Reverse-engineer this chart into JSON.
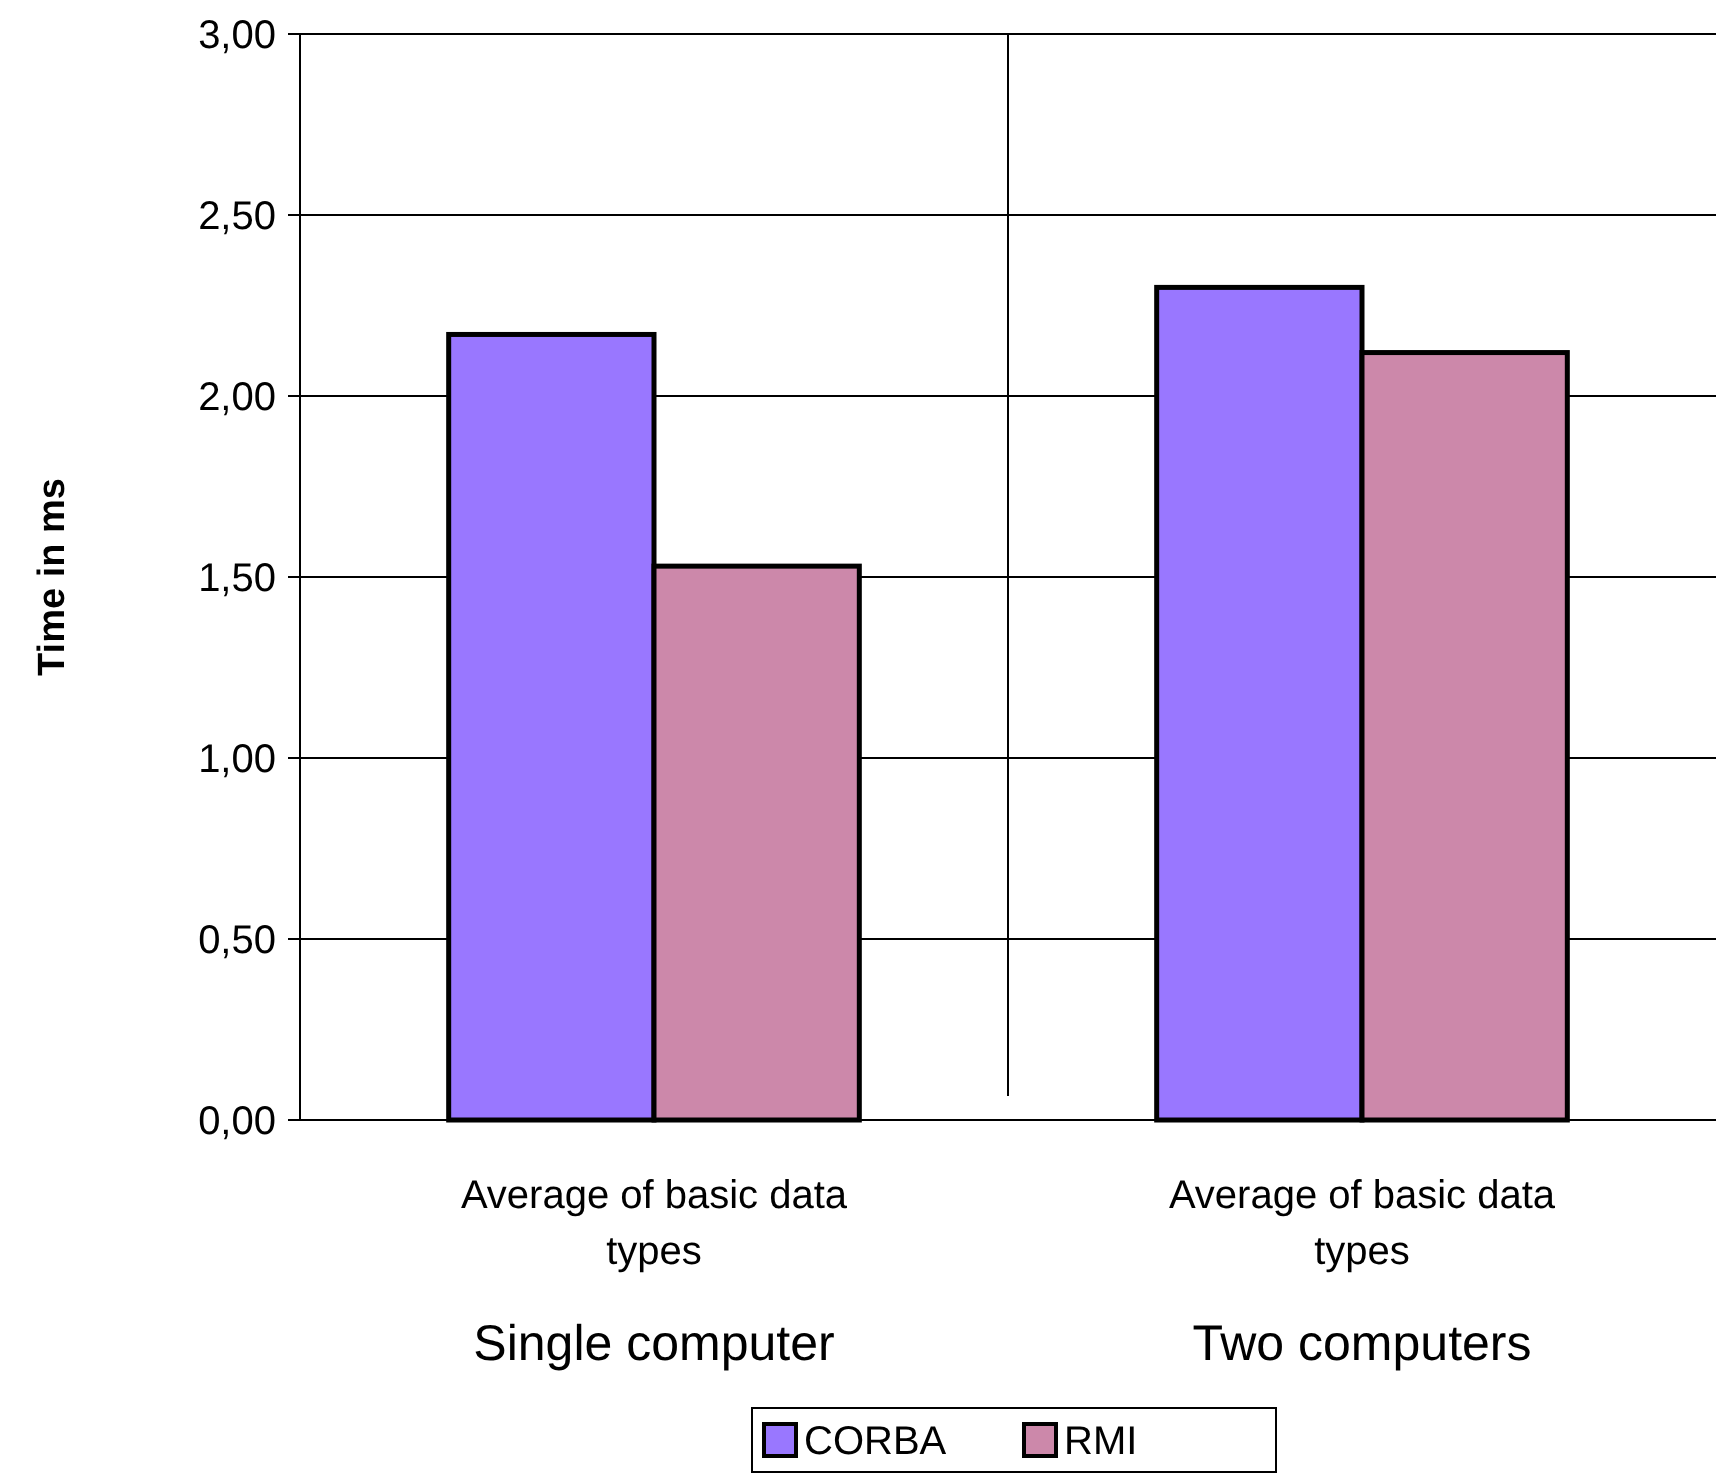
{
  "chart_data": {
    "type": "bar",
    "ylabel": "Time in ms",
    "categories": [
      "Average of basic data types",
      "Average of basic data types"
    ],
    "series": [
      {
        "name": "CORBA",
        "color": "#9977ff",
        "values": [
          2.17,
          2.3
        ]
      },
      {
        "name": "RMI",
        "color": "#cc88aa",
        "values": [
          1.53,
          2.12
        ]
      }
    ],
    "ylim": [
      0,
      3
    ],
    "yticks": [
      {
        "value": 0,
        "label": "0,00"
      },
      {
        "value": 0.5,
        "label": "0,50"
      },
      {
        "value": 1,
        "label": "1,00"
      },
      {
        "value": 1.5,
        "label": "1,50"
      },
      {
        "value": 2,
        "label": "2,00"
      },
      {
        "value": 2.5,
        "label": "2,50"
      },
      {
        "value": 3,
        "label": "3,00"
      }
    ],
    "grid": "y",
    "legend": "bottom",
    "annotations": [
      "Single computer",
      "Two computers"
    ]
  }
}
